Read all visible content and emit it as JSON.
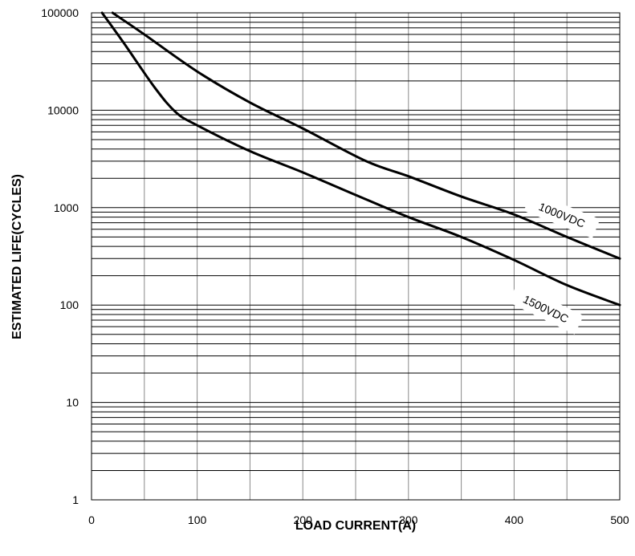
{
  "chart_data": {
    "type": "line",
    "title": "",
    "xlabel": "LOAD CURRENT(A)",
    "ylabel": "ESTIMATED LIFE(CYCLES)",
    "x_scale": "linear",
    "y_scale": "log",
    "xlim": [
      0,
      500
    ],
    "ylim": [
      1,
      100000
    ],
    "x_ticks": [
      0,
      100,
      200,
      300,
      400,
      500
    ],
    "x_tick_labels": [
      "0",
      "100",
      "200",
      "300",
      "400",
      "500"
    ],
    "y_ticks": [
      1,
      10,
      100,
      1000,
      10000,
      100000
    ],
    "y_tick_labels": [
      "1",
      "10",
      "100",
      "1000",
      "10000",
      "100000"
    ],
    "grid": true,
    "legend": "none",
    "series": [
      {
        "name": "1000VDC",
        "x": [
          20,
          50,
          100,
          150,
          200,
          260,
          300,
          350,
          400,
          450,
          500
        ],
        "y": [
          100000,
          60000,
          25000,
          12000,
          6500,
          3000,
          2100,
          1300,
          850,
          500,
          300
        ],
        "color": "#000000"
      },
      {
        "name": "1500VDC",
        "x": [
          10,
          30,
          60,
          80,
          100,
          150,
          200,
          250,
          300,
          350,
          400,
          450,
          500
        ],
        "y": [
          100000,
          50000,
          17000,
          9500,
          7000,
          3800,
          2300,
          1350,
          800,
          500,
          290,
          160,
          100
        ],
        "color": "#000000"
      }
    ]
  }
}
